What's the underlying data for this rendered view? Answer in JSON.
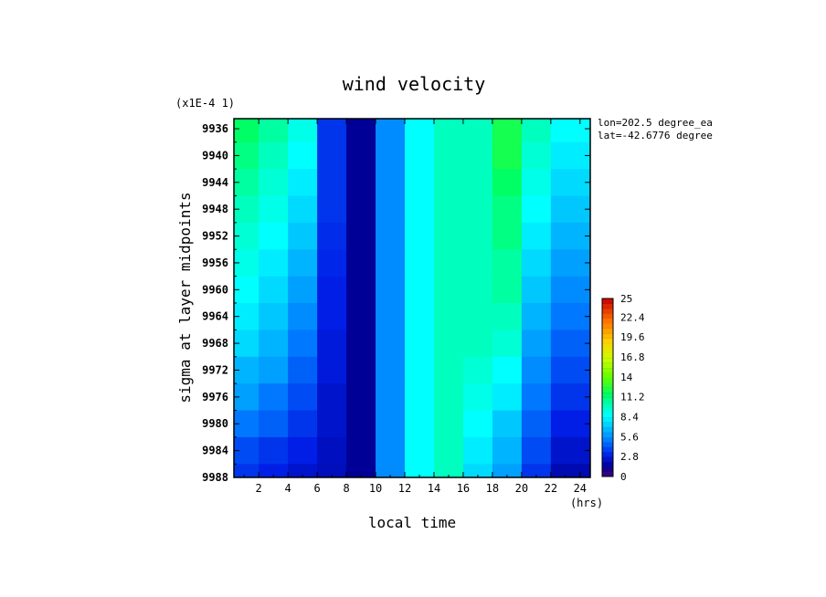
{
  "chart_data": {
    "type": "heatmap",
    "title": "wind velocity",
    "xlabel": "local time",
    "x_unit": "(hrs)",
    "ylabel": "sigma at layer midpoints",
    "y_scale_note": "(x1E-4 1)",
    "annotations": [
      "lon=202.5 degree_ea",
      "lat=-42.6776 degree"
    ],
    "x": [
      1,
      3,
      5,
      7,
      9,
      11,
      13,
      15,
      17,
      19,
      21,
      23
    ],
    "xlim": [
      0.3,
      24.7
    ],
    "x_ticks": [
      "2",
      "4",
      "6",
      "8",
      "10",
      "12",
      "14",
      "16",
      "18",
      "20",
      "22",
      "24"
    ],
    "y": [
      9936,
      9940,
      9944,
      9948,
      9952,
      9956,
      9960,
      9964,
      9968,
      9972,
      9976,
      9980,
      9984,
      9988
    ],
    "ylim": [
      9934.5,
      9988
    ],
    "y_ticks": [
      "9936",
      "9940",
      "9944",
      "9948",
      "9952",
      "9956",
      "9960",
      "9964",
      "9968",
      "9972",
      "9976",
      "9980",
      "9984",
      "9988"
    ],
    "z": [
      [
        11.5,
        10.5,
        9.0,
        3.5,
        1.5,
        5.5,
        8.5,
        10.0,
        10.0,
        12.0,
        10.0,
        8.5
      ],
      [
        11.0,
        10.0,
        8.5,
        3.5,
        1.5,
        5.5,
        8.5,
        10.0,
        10.0,
        12.0,
        9.5,
        8.0
      ],
      [
        10.5,
        9.5,
        8.0,
        3.5,
        1.5,
        5.5,
        8.5,
        10.0,
        10.0,
        11.5,
        9.0,
        7.5
      ],
      [
        10.0,
        9.0,
        7.5,
        3.5,
        1.5,
        5.5,
        8.5,
        10.0,
        10.0,
        11.0,
        8.5,
        7.0
      ],
      [
        9.5,
        8.5,
        7.0,
        3.3,
        1.5,
        5.5,
        8.5,
        10.0,
        10.0,
        11.0,
        8.0,
        6.5
      ],
      [
        9.0,
        8.0,
        6.5,
        3.2,
        1.5,
        5.5,
        8.5,
        10.0,
        10.0,
        10.5,
        7.5,
        6.0
      ],
      [
        8.5,
        7.5,
        6.0,
        3.0,
        1.5,
        5.5,
        8.5,
        10.0,
        10.0,
        10.5,
        7.0,
        5.5
      ],
      [
        8.0,
        7.0,
        5.5,
        3.0,
        1.5,
        5.5,
        8.5,
        10.0,
        10.0,
        10.0,
        6.5,
        5.0
      ],
      [
        7.5,
        6.5,
        5.0,
        2.8,
        1.5,
        5.5,
        8.5,
        10.0,
        10.0,
        9.5,
        6.0,
        4.5
      ],
      [
        6.5,
        6.0,
        4.5,
        2.8,
        1.5,
        5.5,
        8.5,
        10.0,
        9.5,
        8.5,
        5.5,
        4.0
      ],
      [
        6.0,
        5.0,
        4.0,
        2.5,
        1.5,
        5.5,
        8.5,
        10.0,
        9.0,
        8.0,
        5.0,
        3.5
      ],
      [
        5.0,
        4.5,
        3.5,
        2.5,
        1.5,
        5.5,
        8.5,
        10.0,
        8.5,
        7.0,
        4.5,
        3.0
      ],
      [
        4.0,
        3.5,
        3.0,
        2.3,
        1.5,
        5.5,
        8.5,
        10.0,
        8.0,
        6.5,
        4.0,
        2.5
      ],
      [
        3.5,
        3.0,
        2.5,
        2.2,
        1.5,
        5.5,
        8.5,
        10.0,
        7.5,
        6.0,
        3.5,
        2.0
      ]
    ],
    "colorbar": {
      "levels": [
        "0",
        "2.8",
        "5.6",
        "8.4",
        "11.2",
        "14",
        "16.8",
        "19.6",
        "22.4",
        "25"
      ],
      "vmin": 0,
      "vmax": 25
    },
    "grid": false
  }
}
